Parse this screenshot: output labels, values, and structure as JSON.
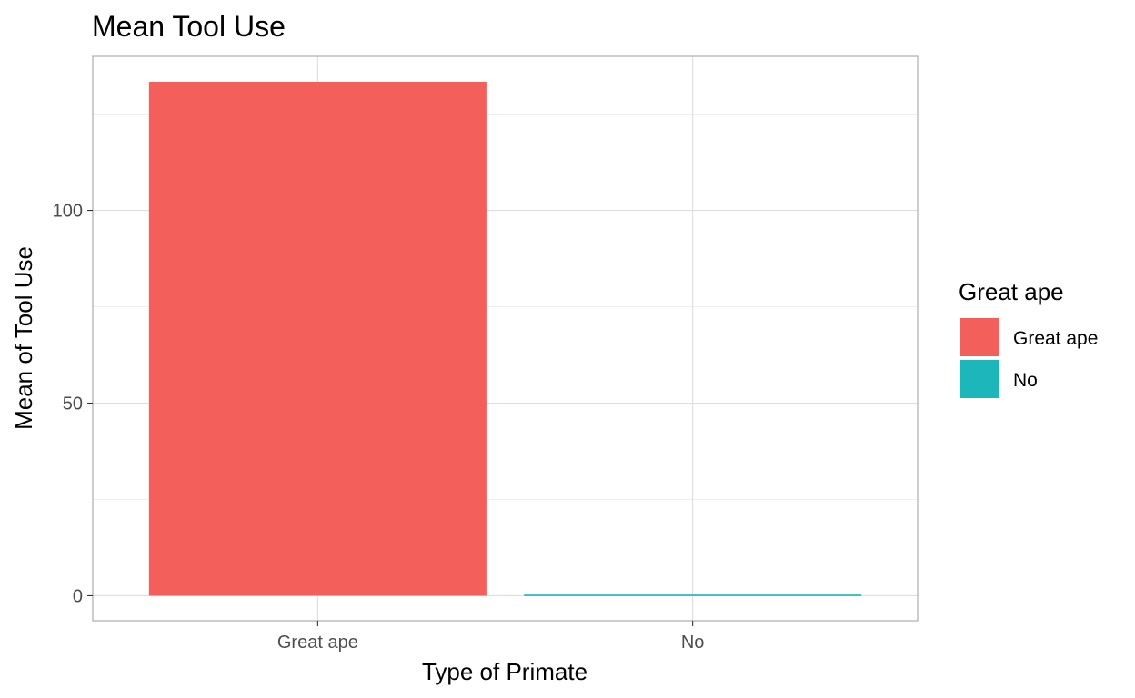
{
  "chart_data": {
    "type": "bar",
    "title": "Mean Tool Use",
    "xlabel": "Type of Primate",
    "ylabel": "Mean of Tool Use",
    "categories": [
      "Great ape",
      "No"
    ],
    "values": [
      133.4,
      0.3
    ],
    "colors": [
      "#f35f5a",
      "#1cb6bb"
    ],
    "ylim": [
      -6.5,
      140
    ],
    "yticks": [
      0,
      50,
      100
    ],
    "grid": true,
    "legend": {
      "title": "Great ape",
      "placement": "right",
      "entries": [
        {
          "label": "Great ape",
          "color": "#f35f5a"
        },
        {
          "label": "No",
          "color": "#1cb6bb"
        }
      ]
    }
  }
}
